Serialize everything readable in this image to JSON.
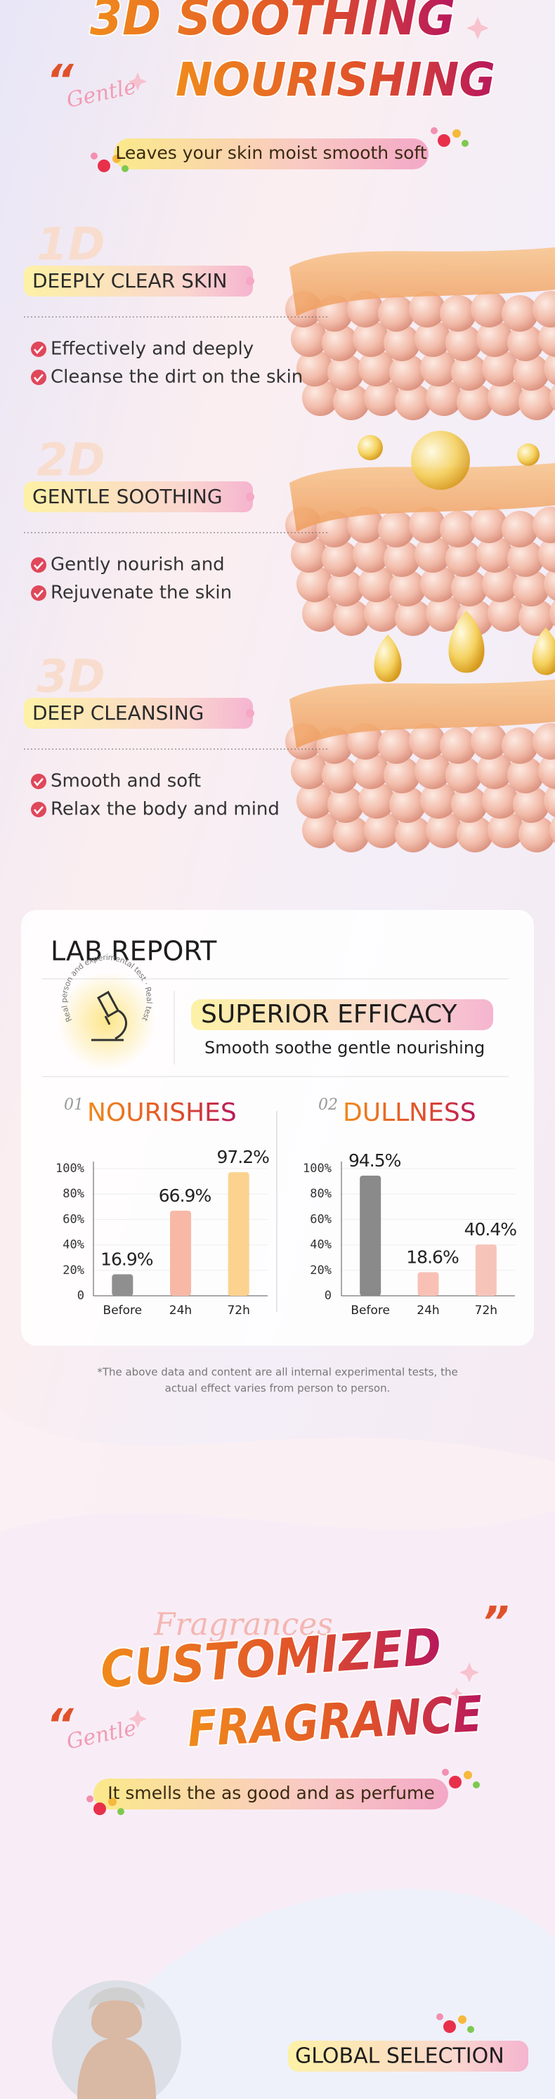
{
  "header": {
    "title_line1": "3D SOOTHING",
    "quote_open": "“",
    "script_word": "Gentle",
    "title_line2": "NOURISHING",
    "tagline": "Leaves your skin moist smooth soft"
  },
  "features": [
    {
      "number": "1D",
      "title": "DEEPLY CLEAR SKIN",
      "points": [
        "Effectively and deeply",
        "Cleanse the dirt on the skin"
      ]
    },
    {
      "number": "2D",
      "title": "GENTLE SOOTHING",
      "points": [
        "Gently nourish and",
        "Rejuvenate the skin"
      ]
    },
    {
      "number": "3D",
      "title": "DEEP CLEANSING",
      "points": [
        "Smooth and soft",
        "Relax the body and mind"
      ]
    }
  ],
  "lab_report": {
    "title": "LAB REPORT",
    "stamp_text": "Real person and experimental test · Real testing",
    "badge": "SUPERIOR EFFICACY",
    "subtitle": "Smooth soothe gentle nourishing",
    "note_line1": "*The above data and content are all internal experimental tests, the",
    "note_line2": "actual effect varies from person to person."
  },
  "chart_data": [
    {
      "type": "bar",
      "number": "01",
      "title": "NOURISHES",
      "categories": [
        "Before",
        "24h",
        "72h"
      ],
      "values": [
        16.9,
        66.9,
        97.2
      ],
      "value_labels": [
        "16.9%",
        "66.9%",
        "97.2%"
      ],
      "colors": [
        "#8f8f8f",
        "#f7b9a6",
        "#fbd38f"
      ],
      "ylim": [
        0,
        100
      ],
      "yticks": [
        0,
        {
          "value": 20,
          "label": "20%"
        },
        {
          "value": 40,
          "label": "40%"
        },
        {
          "value": 60,
          "label": "60%"
        },
        {
          "value": 80,
          "label": "80%"
        },
        {
          "value": 100,
          "label": "100%"
        }
      ],
      "grid": true
    },
    {
      "type": "bar",
      "number": "02",
      "title": "DULLNESS",
      "categories": [
        "Before",
        "24h",
        "72h"
      ],
      "values": [
        94.5,
        18.6,
        40.4
      ],
      "value_labels": [
        "94.5%",
        "18.6%",
        "40.4%"
      ],
      "colors": [
        "#8a8a8a",
        "#f9c1b5",
        "#f7c4b9"
      ],
      "ylim": [
        0,
        100
      ],
      "yticks": [
        0,
        {
          "value": 20,
          "label": "20%"
        },
        {
          "value": 40,
          "label": "40%"
        },
        {
          "value": 60,
          "label": "60%"
        },
        {
          "value": 80,
          "label": "80%"
        },
        {
          "value": 100,
          "label": "100%"
        }
      ],
      "grid": true
    }
  ],
  "fragrance": {
    "script_word": "Fragrances",
    "quote_close": "”",
    "title_line1": "CUSTOMIZED",
    "quote_open": "“",
    "script_word2": "Gentle",
    "title_line2": "FRAGRANCE",
    "tagline": "It smells the as good and as perfume"
  },
  "global": {
    "title": "GLOBAL SELECTION"
  }
}
